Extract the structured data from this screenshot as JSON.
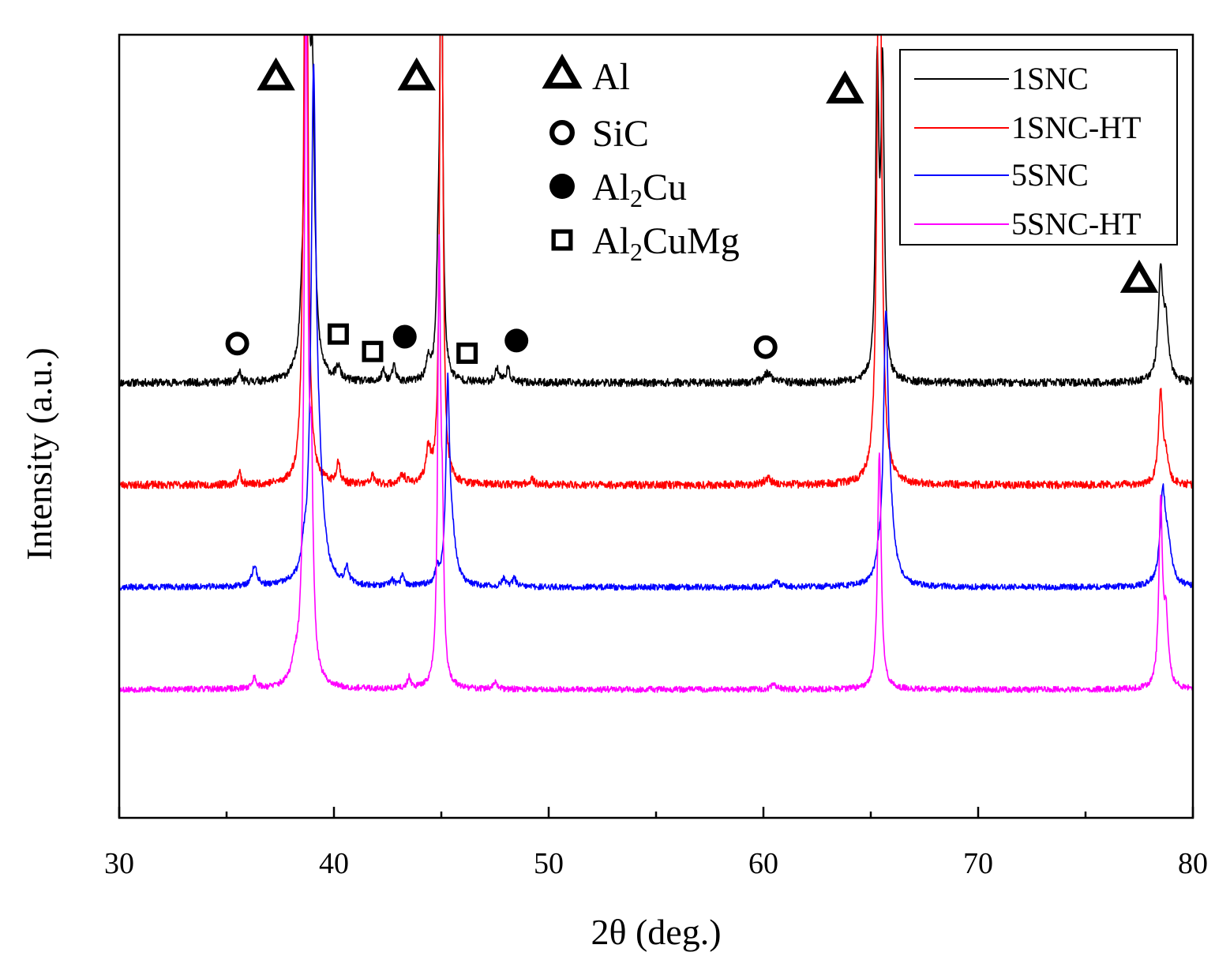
{
  "chart_data": {
    "type": "line",
    "title": "",
    "xlabel": "2θ (deg.)",
    "ylabel": "Intensity (a.u.)",
    "xlim": [
      30,
      80
    ],
    "xticks": [
      30,
      40,
      50,
      60,
      70,
      80
    ],
    "yticks": [],
    "grid": false,
    "legend_position": "top-right",
    "series": [
      {
        "name": "1SNC",
        "color": "#000000",
        "baseline": 0.0,
        "noise": 0.09,
        "seed": 11,
        "peaks": [
          {
            "x": 35.6,
            "h": 0.25,
            "w": 0.08
          },
          {
            "x": 38.5,
            "h": 0.7,
            "w": 0.12
          },
          {
            "x": 38.75,
            "h": 16.0,
            "w": 0.09
          },
          {
            "x": 39.0,
            "h": 6.0,
            "w": 0.12
          },
          {
            "x": 40.2,
            "h": 0.3,
            "w": 0.12
          },
          {
            "x": 42.3,
            "h": 0.25,
            "w": 0.1
          },
          {
            "x": 42.8,
            "h": 0.35,
            "w": 0.1
          },
          {
            "x": 44.4,
            "h": 0.45,
            "w": 0.12
          },
          {
            "x": 44.85,
            "h": 2.0,
            "w": 0.09
          },
          {
            "x": 45.0,
            "h": 12.0,
            "w": 0.07
          },
          {
            "x": 47.6,
            "h": 0.3,
            "w": 0.12
          },
          {
            "x": 48.1,
            "h": 0.3,
            "w": 0.12
          },
          {
            "x": 60.2,
            "h": 0.22,
            "w": 0.22
          },
          {
            "x": 65.3,
            "h": 7.0,
            "w": 0.09
          },
          {
            "x": 65.55,
            "h": 7.0,
            "w": 0.09
          },
          {
            "x": 78.5,
            "h": 2.5,
            "w": 0.13
          },
          {
            "x": 78.75,
            "h": 1.2,
            "w": 0.13
          }
        ]
      },
      {
        "name": "1SNC-HT",
        "color": "#ff0000",
        "baseline": -2.35,
        "noise": 0.09,
        "seed": 23,
        "peaks": [
          {
            "x": 35.6,
            "h": 0.3,
            "w": 0.08
          },
          {
            "x": 38.55,
            "h": 1.3,
            "w": 0.1
          },
          {
            "x": 38.7,
            "h": 18.0,
            "w": 0.09
          },
          {
            "x": 40.2,
            "h": 0.5,
            "w": 0.1
          },
          {
            "x": 41.8,
            "h": 0.2,
            "w": 0.1
          },
          {
            "x": 43.2,
            "h": 0.2,
            "w": 0.15
          },
          {
            "x": 44.4,
            "h": 0.75,
            "w": 0.12
          },
          {
            "x": 45.0,
            "h": 15.0,
            "w": 0.08
          },
          {
            "x": 49.2,
            "h": 0.12,
            "w": 0.15
          },
          {
            "x": 60.2,
            "h": 0.15,
            "w": 0.2
          },
          {
            "x": 65.4,
            "h": 16.0,
            "w": 0.11
          },
          {
            "x": 78.5,
            "h": 2.1,
            "w": 0.12
          },
          {
            "x": 78.75,
            "h": 0.5,
            "w": 0.12
          }
        ]
      },
      {
        "name": "5SNC",
        "color": "#0000ff",
        "baseline": -4.7,
        "noise": 0.07,
        "seed": 37,
        "peaks": [
          {
            "x": 36.3,
            "h": 0.45,
            "w": 0.14
          },
          {
            "x": 38.6,
            "h": 0.4,
            "w": 0.1
          },
          {
            "x": 39.05,
            "h": 11.0,
            "w": 0.13
          },
          {
            "x": 39.3,
            "h": 2.0,
            "w": 0.25
          },
          {
            "x": 40.6,
            "h": 0.4,
            "w": 0.1
          },
          {
            "x": 42.7,
            "h": 0.15,
            "w": 0.1
          },
          {
            "x": 43.2,
            "h": 0.3,
            "w": 0.08
          },
          {
            "x": 44.8,
            "h": 0.3,
            "w": 0.1
          },
          {
            "x": 45.3,
            "h": 4.3,
            "w": 0.1
          },
          {
            "x": 45.5,
            "h": 1.0,
            "w": 0.22
          },
          {
            "x": 47.9,
            "h": 0.2,
            "w": 0.1
          },
          {
            "x": 48.4,
            "h": 0.2,
            "w": 0.1
          },
          {
            "x": 60.6,
            "h": 0.12,
            "w": 0.18
          },
          {
            "x": 65.35,
            "h": 0.3,
            "w": 0.1
          },
          {
            "x": 65.7,
            "h": 5.6,
            "w": 0.13
          },
          {
            "x": 65.9,
            "h": 1.2,
            "w": 0.25
          },
          {
            "x": 78.6,
            "h": 2.0,
            "w": 0.15
          },
          {
            "x": 78.85,
            "h": 0.8,
            "w": 0.2
          }
        ]
      },
      {
        "name": "5SNC-HT",
        "color": "#ff00ff",
        "baseline": -7.05,
        "noise": 0.07,
        "seed": 53,
        "peaks": [
          {
            "x": 36.3,
            "h": 0.25,
            "w": 0.12
          },
          {
            "x": 38.2,
            "h": 0.4,
            "w": 0.2
          },
          {
            "x": 38.7,
            "h": 16.0,
            "w": 0.1
          },
          {
            "x": 38.95,
            "h": 4.0,
            "w": 0.1
          },
          {
            "x": 43.5,
            "h": 0.25,
            "w": 0.1
          },
          {
            "x": 44.9,
            "h": 9.8,
            "w": 0.08
          },
          {
            "x": 45.05,
            "h": 3.0,
            "w": 0.08
          },
          {
            "x": 47.5,
            "h": 0.15,
            "w": 0.1
          },
          {
            "x": 60.5,
            "h": 0.12,
            "w": 0.15
          },
          {
            "x": 65.4,
            "h": 5.5,
            "w": 0.1
          },
          {
            "x": 78.5,
            "h": 4.2,
            "w": 0.1
          },
          {
            "x": 78.75,
            "h": 1.5,
            "w": 0.12
          }
        ]
      }
    ],
    "phase_legend": [
      {
        "symbol": "open-triangle",
        "label": "Al"
      },
      {
        "symbol": "open-circle",
        "label": "SiC"
      },
      {
        "symbol": "filled-circle",
        "label": "Al",
        "sub": "2",
        "suffix": "Cu"
      },
      {
        "symbol": "open-square",
        "label": "Al",
        "sub": "2",
        "suffix": "CuMg"
      }
    ],
    "markers": [
      {
        "symbol": "open-triangle",
        "x": 37.3,
        "y": 7.0
      },
      {
        "symbol": "open-triangle",
        "x": 43.85,
        "y": 7.0
      },
      {
        "symbol": "open-triangle",
        "x": 63.8,
        "y": 6.7
      },
      {
        "symbol": "open-triangle",
        "x": 77.5,
        "y": 2.35
      },
      {
        "symbol": "open-circle",
        "x": 35.5,
        "y": 0.9
      },
      {
        "symbol": "open-circle",
        "x": 60.1,
        "y": 0.82
      },
      {
        "symbol": "open-square",
        "x": 40.2,
        "y": 1.12
      },
      {
        "symbol": "open-square",
        "x": 41.8,
        "y": 0.72
      },
      {
        "symbol": "open-square",
        "x": 46.2,
        "y": 0.68
      },
      {
        "symbol": "filled-circle",
        "x": 43.3,
        "y": 1.06
      },
      {
        "symbol": "filled-circle",
        "x": 48.5,
        "y": 0.97
      }
    ]
  }
}
